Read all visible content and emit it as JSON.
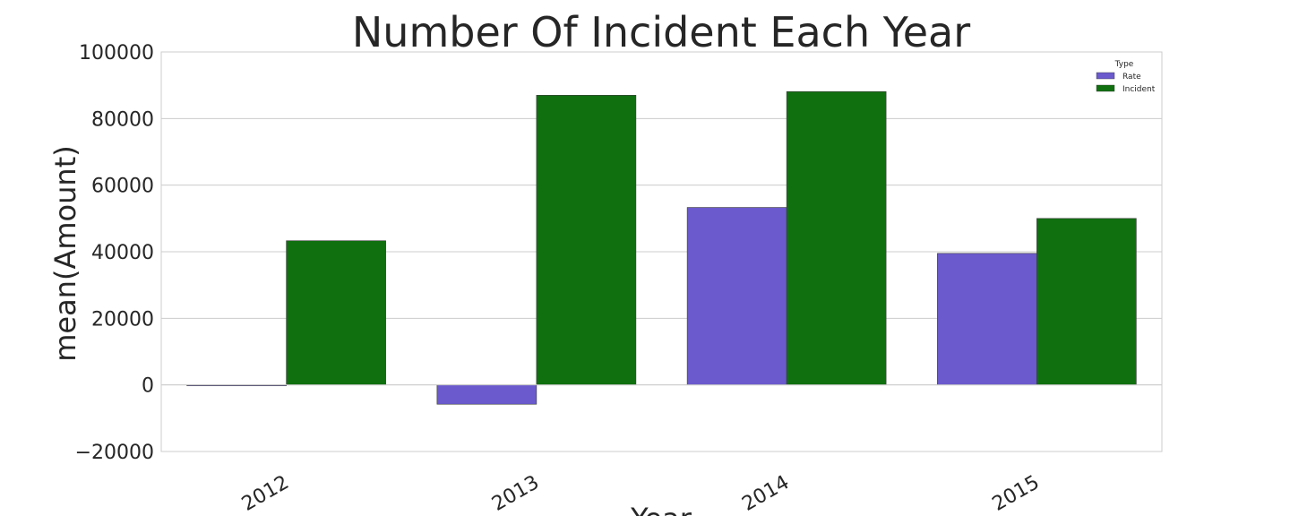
{
  "chart_data": {
    "type": "bar",
    "title": "Number Of Incident Each Year",
    "xlabel": "Year",
    "ylabel": "mean(Amount)",
    "categories": [
      "2012",
      "2013",
      "2014",
      "2015"
    ],
    "series": [
      {
        "name": "Rate",
        "color": "#6a5acd",
        "values": [
          -100,
          -5800,
          53300,
          39500
        ]
      },
      {
        "name": "Incident",
        "color": "#107010",
        "values": [
          43300,
          87000,
          88100,
          50000
        ]
      }
    ],
    "ylim": [
      -20000,
      100000
    ],
    "yticks": [
      -20000,
      0,
      20000,
      40000,
      60000,
      80000,
      100000
    ],
    "ytick_labels": [
      "−20000",
      "0",
      "20000",
      "40000",
      "60000",
      "80000",
      "100000"
    ],
    "legend": {
      "title": "Type",
      "placement": "top-right"
    },
    "grid": "horizontal",
    "xtick_rotation": "rotated"
  }
}
